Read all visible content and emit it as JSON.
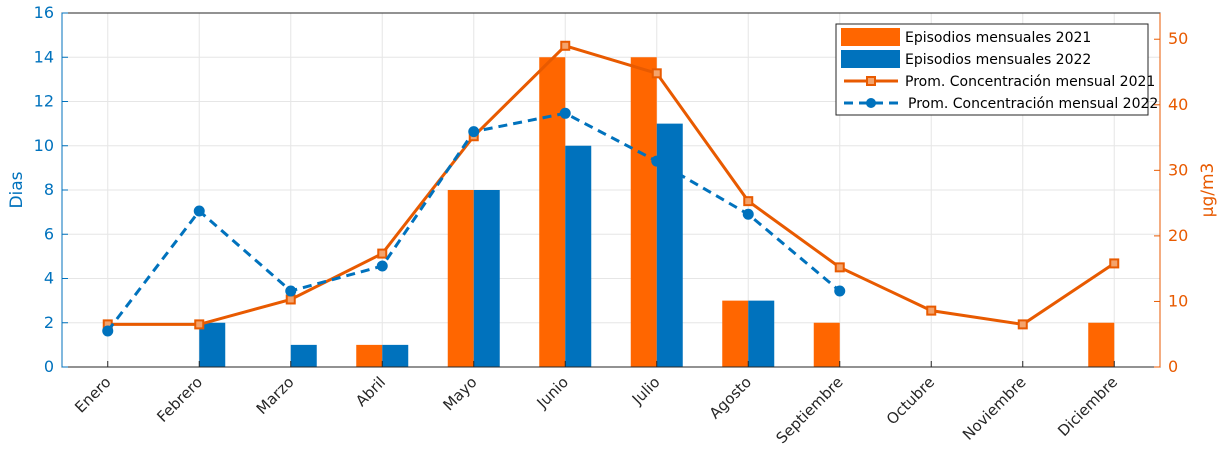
{
  "chart_data": {
    "type": "bar",
    "categories": [
      "Enero",
      "Febrero",
      "Marzo",
      "Abril",
      "Mayo",
      "Junio",
      "Julio",
      "Agosto",
      "Septiembre",
      "Octubre",
      "Noviembre",
      "Diciembre"
    ],
    "ylabel_left": "Dias",
    "ylabel_right": "µg/m3",
    "ylim_left": [
      0,
      16
    ],
    "yticks_left": [
      0,
      2,
      4,
      6,
      8,
      10,
      12,
      14,
      16
    ],
    "ylim_right": [
      0,
      54
    ],
    "yticks_right": [
      0,
      10,
      20,
      30,
      40,
      50
    ],
    "grid": true,
    "legend_position": "top-right",
    "bar_series": [
      {
        "name": "Episodios mensuales 2021",
        "color": "#ff6600",
        "values": [
          0,
          0,
          0,
          1,
          8,
          14,
          14,
          3,
          2,
          0,
          0,
          2
        ]
      },
      {
        "name": "Episodios mensuales 2022",
        "color": "#0072bd",
        "values": [
          0,
          2,
          1,
          1,
          8,
          10,
          11,
          3,
          0,
          0,
          0,
          0
        ]
      }
    ],
    "line_series": [
      {
        "name": "Prom. Concentración mensual 2021",
        "color": "#e85a00",
        "style": "solid",
        "marker": "square",
        "values": [
          6.5,
          6.5,
          10.3,
          17.3,
          35.2,
          49,
          44.8,
          25.3,
          15.2,
          8.6,
          6.5,
          15.8
        ]
      },
      {
        "name": "Prom. Concentración mensual 2022",
        "color": "#0072bd",
        "style": "dashed",
        "marker": "circle",
        "values": [
          5.5,
          23.8,
          11.6,
          15.4,
          35.9,
          38.7,
          31.4,
          23.3,
          11.6,
          null,
          null,
          null
        ]
      }
    ]
  }
}
